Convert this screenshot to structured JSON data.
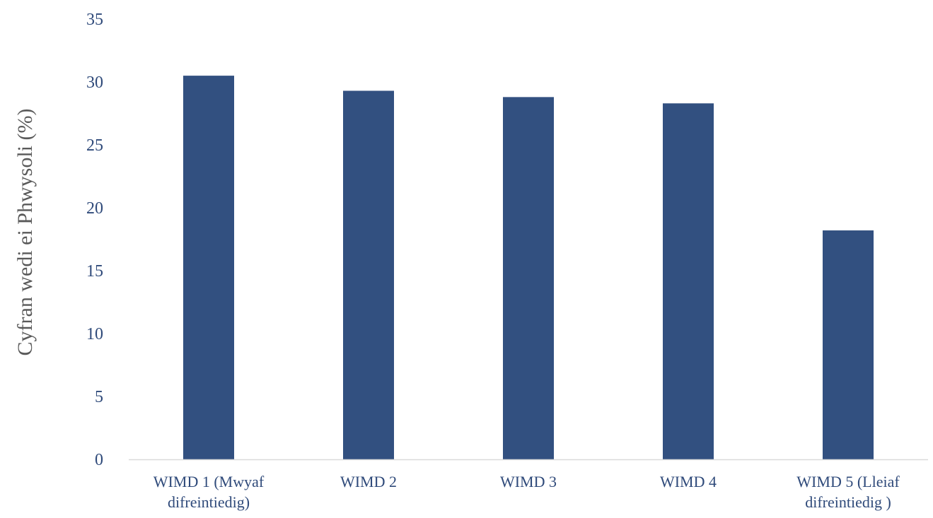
{
  "chart_data": {
    "type": "bar",
    "title": "",
    "xlabel": "",
    "ylabel": "Cyfran wedi ei Phwysoli (%)",
    "ylim": [
      0,
      35
    ],
    "yticks": [
      0,
      5,
      10,
      15,
      20,
      25,
      30,
      35
    ],
    "grid": false,
    "legend": "none",
    "categories": [
      [
        "WIMD 1 (Mwyaf",
        "difreintiedig)"
      ],
      [
        "WIMD 2"
      ],
      [
        "WIMD 3"
      ],
      [
        "WIMD 4"
      ],
      [
        "WIMD 5 (Lleiaf",
        "difreintiedig )"
      ]
    ],
    "values": [
      30.5,
      29.3,
      28.8,
      28.3,
      18.2
    ],
    "colors": {
      "bar": "#325080",
      "text": "#2f4a7a",
      "axis": "#d9d9d9"
    }
  }
}
